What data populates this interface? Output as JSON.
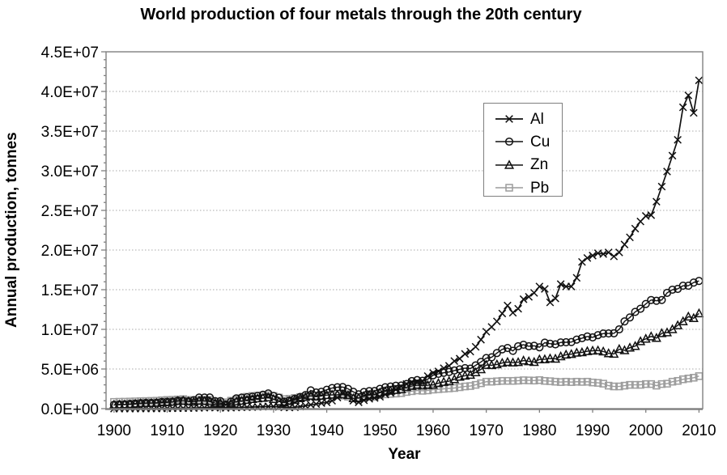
{
  "chart_data": {
    "type": "line",
    "title": "World production of four metals through the 20th century",
    "xlabel": "Year",
    "ylabel": "Annual production, tonnes",
    "xlim": [
      1898.5,
      2010.7
    ],
    "ylim": [
      0,
      45000000
    ],
    "x_tick_labels": [
      "1900",
      "1910",
      "1920",
      "1930",
      "1940",
      "1950",
      "1960",
      "1970",
      "1980",
      "1990",
      "2000",
      "2010"
    ],
    "x_ticks": [
      1900,
      1910,
      1920,
      1930,
      1940,
      1950,
      1960,
      1970,
      1980,
      1990,
      2000,
      2010
    ],
    "y_tick_labels": [
      "0.0E+00",
      "5.0E+06",
      "1.0E+07",
      "1.5E+07",
      "2.0E+07",
      "2.5E+07",
      "3.0E+07",
      "3.5E+07",
      "4.0E+07",
      "4.5E+07"
    ],
    "y_ticks": [
      0,
      5000000,
      10000000,
      15000000,
      20000000,
      25000000,
      30000000,
      35000000,
      40000000,
      45000000
    ],
    "y_minor_tick_step": 1000000,
    "grid": "horizontal-dotted",
    "grid_color": "#a8a8a8",
    "frame_color": "#808080",
    "legend_position": "upper-right-inside",
    "years": [
      1900,
      1901,
      1902,
      1903,
      1904,
      1905,
      1906,
      1907,
      1908,
      1909,
      1910,
      1911,
      1912,
      1913,
      1914,
      1915,
      1916,
      1917,
      1918,
      1919,
      1920,
      1921,
      1922,
      1923,
      1924,
      1925,
      1926,
      1927,
      1928,
      1929,
      1930,
      1931,
      1932,
      1933,
      1934,
      1935,
      1936,
      1937,
      1938,
      1939,
      1940,
      1941,
      1942,
      1943,
      1944,
      1945,
      1946,
      1947,
      1948,
      1949,
      1950,
      1951,
      1952,
      1953,
      1954,
      1955,
      1956,
      1957,
      1958,
      1959,
      1960,
      1961,
      1962,
      1963,
      1964,
      1965,
      1966,
      1967,
      1968,
      1969,
      1970,
      1971,
      1972,
      1973,
      1974,
      1975,
      1976,
      1977,
      1978,
      1979,
      1980,
      1981,
      1982,
      1983,
      1984,
      1985,
      1986,
      1987,
      1988,
      1989,
      1990,
      1991,
      1992,
      1993,
      1994,
      1995,
      1996,
      1997,
      1998,
      1999,
      2000,
      2001,
      2002,
      2003,
      2004,
      2005,
      2006,
      2007,
      2008,
      2009,
      2010
    ],
    "series": [
      {
        "name": "Al",
        "marker": "x",
        "color": "#111111",
        "line_width": 1.7,
        "values": [
          7000,
          8000,
          9000,
          10000,
          12000,
          15000,
          18000,
          23000,
          25000,
          30000,
          45000,
          48000,
          55000,
          65000,
          70000,
          80000,
          100000,
          125000,
          143000,
          132000,
          128000,
          100000,
          120000,
          145000,
          170000,
          185000,
          200000,
          220000,
          250000,
          280000,
          270000,
          220000,
          155000,
          143000,
          171000,
          260000,
          366000,
          490000,
          580000,
          700000,
          780000,
          1000000,
          1400000,
          1950000,
          1750000,
          1000000,
          800000,
          1050000,
          1250000,
          1350000,
          1500000,
          1800000,
          2000000,
          2400000,
          2800000,
          3100000,
          3350000,
          3400000,
          3500000,
          4100000,
          4500000,
          4700000,
          5100000,
          5400000,
          6000000,
          6300000,
          6900000,
          7200000,
          7800000,
          8700000,
          9700000,
          10300000,
          11000000,
          12000000,
          13000000,
          12100000,
          12600000,
          13800000,
          14100000,
          14600000,
          15400000,
          15100000,
          13400000,
          13900000,
          15700000,
          15400000,
          15400000,
          16500000,
          18500000,
          19000000,
          19300000,
          19600000,
          19500000,
          19700000,
          19200000,
          19700000,
          20700000,
          21600000,
          22700000,
          23600000,
          24300000,
          24400000,
          26100000,
          28000000,
          29900000,
          31900000,
          33900000,
          38000000,
          39500000,
          37300000,
          41400000
        ]
      },
      {
        "name": "Cu",
        "marker": "circle",
        "color": "#111111",
        "line_width": 1.4,
        "values": [
          495000,
          530000,
          545000,
          590000,
          650000,
          700000,
          720000,
          725000,
          760000,
          850000,
          870000,
          890000,
          1000000,
          1000000,
          930000,
          1060000,
          1400000,
          1400000,
          1410000,
          950000,
          955000,
          540000,
          880000,
          1300000,
          1400000,
          1430000,
          1500000,
          1600000,
          1750000,
          1920000,
          1600000,
          1390000,
          900000,
          1030000,
          1250000,
          1470000,
          1720000,
          2300000,
          2030000,
          2130000,
          2380000,
          2600000,
          2700000,
          2720000,
          2500000,
          2120000,
          1800000,
          2100000,
          2220000,
          2230000,
          2490000,
          2700000,
          2790000,
          2890000,
          2920000,
          3110000,
          3480000,
          3600000,
          3510000,
          3710000,
          4210000,
          4390000,
          4520000,
          4620000,
          4810000,
          4960000,
          5110000,
          5050000,
          5460000,
          5890000,
          6380000,
          6470000,
          7010000,
          7480000,
          7650000,
          7290000,
          7870000,
          8060000,
          7870000,
          7930000,
          7740000,
          8320000,
          8190000,
          8110000,
          8350000,
          8370000,
          8400000,
          8710000,
          8890000,
          9100000,
          8990000,
          9270000,
          9470000,
          9480000,
          9500000,
          10000000,
          11000000,
          11500000,
          12200000,
          12600000,
          13200000,
          13700000,
          13600000,
          13700000,
          14600000,
          15000000,
          15100000,
          15500000,
          15500000,
          15900000,
          16100000
        ]
      },
      {
        "name": "Zn",
        "marker": "triangle",
        "color": "#111111",
        "line_width": 1.4,
        "values": [
          480000,
          510000,
          530000,
          560000,
          600000,
          650000,
          690000,
          700000,
          720000,
          760000,
          800000,
          850000,
          940000,
          1000000,
          900000,
          870000,
          980000,
          950000,
          900000,
          700000,
          690000,
          440000,
          680000,
          900000,
          980000,
          1100000,
          1200000,
          1280000,
          1340000,
          1400000,
          1200000,
          900000,
          750000,
          950000,
          1100000,
          1300000,
          1450000,
          1600000,
          1500000,
          1600000,
          1700000,
          1750000,
          1760000,
          1800000,
          1700000,
          1300000,
          1350000,
          1550000,
          1700000,
          1750000,
          2000000,
          2170000,
          2250000,
          2350000,
          2440000,
          2700000,
          2850000,
          2950000,
          2890000,
          2950000,
          3000000,
          3200000,
          3360000,
          3460000,
          3700000,
          4000000,
          4150000,
          4250000,
          4570000,
          4950000,
          5500000,
          5470000,
          5570000,
          5760000,
          5870000,
          5800000,
          5850000,
          6060000,
          5960000,
          5870000,
          6200000,
          6210000,
          6320000,
          6280000,
          6580000,
          6800000,
          6870000,
          7040000,
          7090000,
          7230000,
          7300000,
          7330000,
          7200000,
          6970000,
          6900000,
          7500000,
          7350000,
          7680000,
          7880000,
          8480000,
          8800000,
          9100000,
          8900000,
          9500000,
          9600000,
          10000000,
          10500000,
          11000000,
          11600000,
          11400000,
          12000000
        ]
      },
      {
        "name": "Pb",
        "marker": "square",
        "color": "#9c9c9c",
        "line_width": 1.4,
        "values": [
          850000,
          870000,
          880000,
          900000,
          920000,
          950000,
          960000,
          980000,
          1000000,
          1060000,
          1100000,
          1120000,
          1160000,
          1200000,
          1100000,
          1080000,
          1100000,
          1110000,
          1100000,
          900000,
          800000,
          800000,
          1000000,
          1150000,
          1300000,
          1500000,
          1600000,
          1650000,
          1690000,
          1700000,
          1600000,
          1400000,
          1200000,
          1250000,
          1350000,
          1450000,
          1550000,
          1700000,
          1650000,
          1680000,
          1700000,
          1700000,
          1680000,
          1650000,
          1500000,
          1300000,
          1250000,
          1400000,
          1480000,
          1500000,
          1700000,
          1800000,
          1850000,
          1900000,
          1950000,
          2100000,
          2200000,
          2300000,
          2250000,
          2300000,
          2400000,
          2450000,
          2500000,
          2550000,
          2600000,
          2700000,
          2800000,
          2850000,
          3000000,
          3200000,
          3400000,
          3400000,
          3450000,
          3500000,
          3500000,
          3500000,
          3530000,
          3580000,
          3560000,
          3540000,
          3600000,
          3500000,
          3460000,
          3400000,
          3350000,
          3400000,
          3350000,
          3400000,
          3370000,
          3400000,
          3300000,
          3250000,
          3150000,
          2900000,
          2800000,
          2800000,
          2900000,
          3000000,
          3000000,
          3000000,
          3100000,
          3100000,
          2900000,
          3100000,
          3150000,
          3400000,
          3500000,
          3700000,
          3800000,
          3900000,
          4100000
        ]
      }
    ]
  }
}
